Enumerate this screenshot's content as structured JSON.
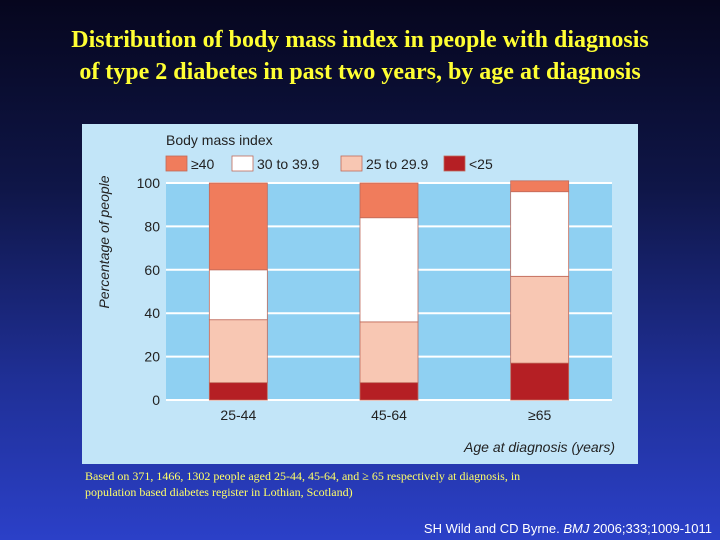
{
  "slide": {
    "title_line1": "Distribution of body mass index in people with diagnosis",
    "title_line2": "of type 2 diabetes in past two years, by age at diagnosis",
    "caption_line1": "Based on 371, 1466, 1302 people aged 25-44, 45-64, and ≥ 65 respectively at diagnosis, in",
    "caption_line2": "population based diabetes register in Lothian, Scotland)",
    "citation_authors": "SH Wild and CD Byrne. ",
    "citation_journal": "BMJ",
    "citation_ref": " 2006;333;1009-1011"
  },
  "chart_data": {
    "type": "bar",
    "stacked": true,
    "legend_title": "Body mass index",
    "legend_position": "top",
    "ylabel": "Percentage of people",
    "xlabel": "Age at diagnosis (years)",
    "ylim": [
      0,
      100
    ],
    "yticks": [
      0,
      20,
      40,
      60,
      80,
      100
    ],
    "grid": true,
    "categories": [
      "25-44",
      "45-64",
      "≥65"
    ],
    "series": [
      {
        "name": "<25",
        "color": "#b51f24",
        "values": [
          8,
          8,
          17
        ]
      },
      {
        "name": "25 to 29.9",
        "color": "#f8c7b3",
        "values": [
          29,
          28,
          40
        ]
      },
      {
        "name": "30 to 39.9",
        "color": "#ffffff",
        "values": [
          23,
          48,
          39
        ]
      },
      {
        "name": "≥40",
        "color": "#f07c5c",
        "values": [
          40,
          16,
          5
        ]
      }
    ],
    "legend_order": [
      "≥40",
      "30 to 39.9",
      "25 to 29.9",
      "<25"
    ]
  }
}
